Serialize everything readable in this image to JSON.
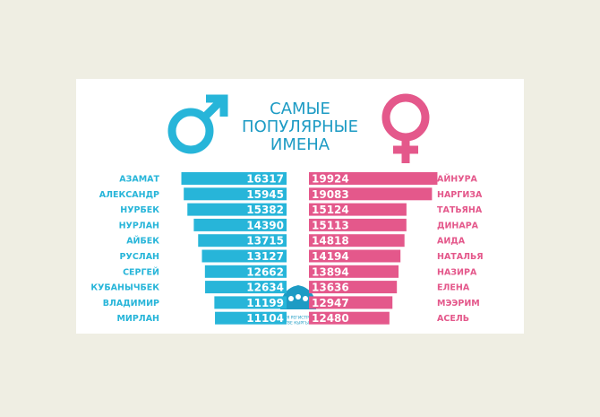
{
  "title": [
    "САМЫЕ",
    "ПОПУЛЯРНЫЕ",
    "ИМЕНА"
  ],
  "source": [
    "ГОСУДАРСТВЕННАЯ РЕГИСТРАЦИОННАЯ СЛУЖБА",
    "ПРИ ПРАВИТЕЛЬСТВЕ КЫРГЫЗСКОЙ РЕСПУБЛИКИ"
  ],
  "chart_data": [
    {
      "type": "bar",
      "orientation": "horizontal",
      "grow": "left",
      "color": "#27b5d9",
      "categories": [
        "АЗАМАТ",
        "АЛЕКСАНДР",
        "НУРБЕК",
        "НУРЛАН",
        "АЙБЕК",
        "РУСЛАН",
        "СЕРГЕЙ",
        "КУБАНЫЧБЕК",
        "ВЛАДИМИР",
        "МИРЛАН"
      ],
      "values": [
        16317,
        15945,
        15382,
        14390,
        13715,
        13127,
        12662,
        12634,
        11199,
        11104
      ]
    },
    {
      "type": "bar",
      "orientation": "horizontal",
      "grow": "right",
      "color": "#e4588b",
      "categories": [
        "АЙНУРА",
        "НАРГИЗА",
        "ТАТЬЯНА",
        "ДИНАРА",
        "АИДА",
        "НАТАЛЬЯ",
        "НАЗИРА",
        "ЕЛЕНА",
        "МЭЭРИМ",
        "АСЕЛЬ"
      ],
      "values": [
        19924,
        19083,
        15124,
        15113,
        14818,
        14194,
        13894,
        13636,
        12947,
        12480
      ]
    }
  ]
}
